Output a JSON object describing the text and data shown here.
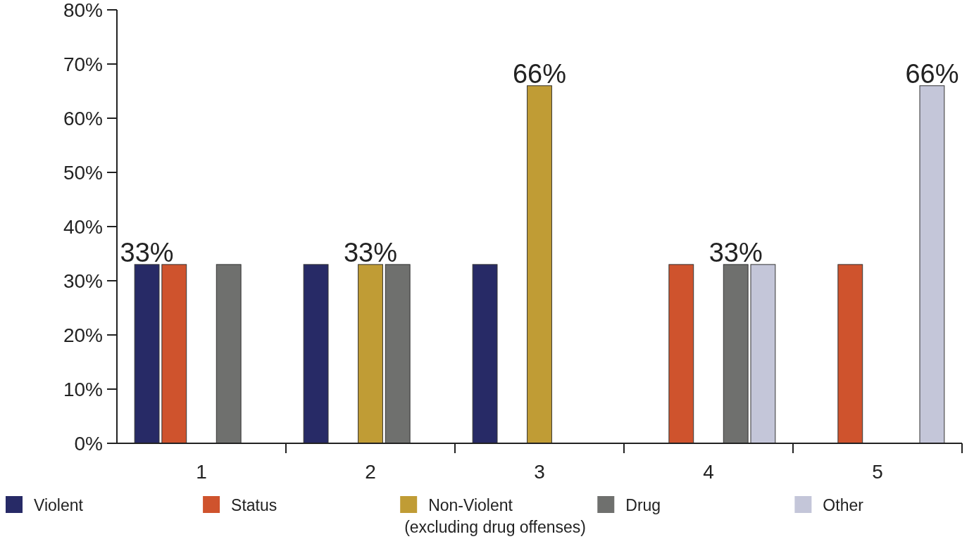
{
  "chart_data": {
    "type": "bar",
    "categories": [
      "1",
      "2",
      "3",
      "4",
      "5"
    ],
    "series": [
      {
        "name": "Violent",
        "color": "#272a66",
        "values": [
          33,
          33,
          33,
          null,
          null
        ],
        "value_labels": [
          "33%",
          null,
          null,
          null,
          null
        ]
      },
      {
        "name": "Status",
        "color": "#cf532d",
        "values": [
          33,
          null,
          null,
          33,
          33
        ],
        "value_labels": [
          null,
          null,
          null,
          null,
          null
        ]
      },
      {
        "name": "Non-Violent\n(excluding drug offenses)",
        "color": "#c09c35",
        "values": [
          null,
          33,
          66,
          null,
          null
        ],
        "value_labels": [
          null,
          "33%",
          "66%",
          null,
          null
        ]
      },
      {
        "name": "Drug",
        "color": "#6f706e",
        "values": [
          33,
          33,
          null,
          33,
          null
        ],
        "value_labels": [
          null,
          null,
          null,
          "33%",
          null
        ]
      },
      {
        "name": "Other",
        "color": "#c4c6d9",
        "values": [
          null,
          null,
          null,
          33,
          66
        ],
        "value_labels": [
          null,
          null,
          null,
          null,
          "66%"
        ]
      }
    ],
    "ylim": [
      0,
      80
    ],
    "yticks": [
      {
        "value": 0,
        "label": "0%"
      },
      {
        "value": 10,
        "label": "10%"
      },
      {
        "value": 20,
        "label": "20%"
      },
      {
        "value": 30,
        "label": "30%"
      },
      {
        "value": 40,
        "label": "40%"
      },
      {
        "value": 50,
        "label": "50%"
      },
      {
        "value": 60,
        "label": "60%"
      },
      {
        "value": 70,
        "label": "70%"
      },
      {
        "value": 80,
        "label": "80%"
      }
    ],
    "grid": false,
    "legend": "bottom"
  }
}
